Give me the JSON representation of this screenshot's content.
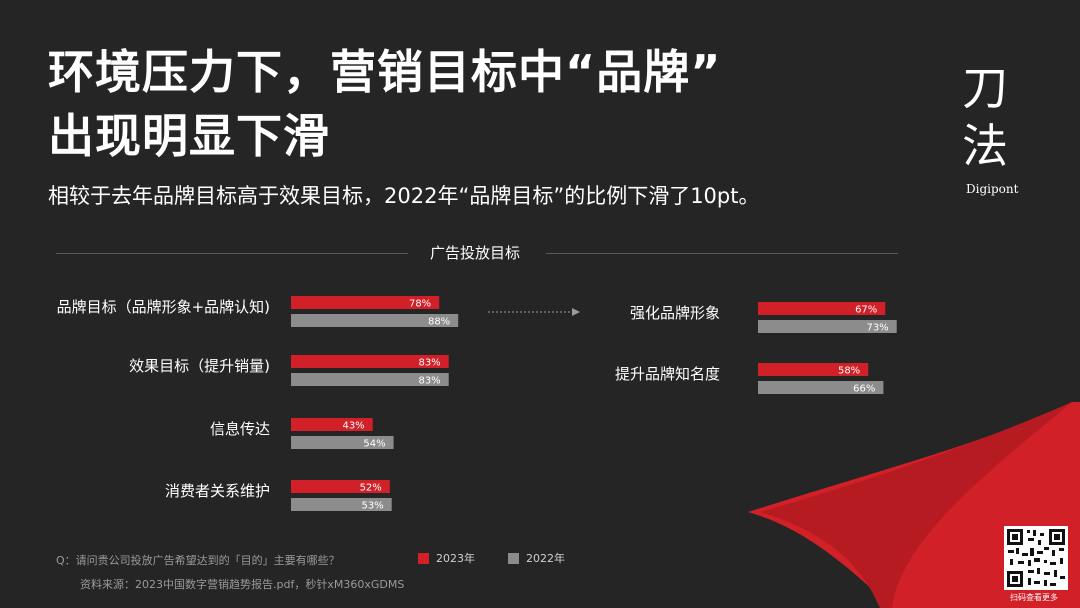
{
  "title": {
    "line1": "环境压力下，营销目标中“品牌”",
    "line2": "出现明显下滑"
  },
  "subtitle": "相较于去年品牌目标高于效果目标，2022年“品牌目标”的比例下滑了10pt。",
  "logo": {
    "line1": "刀",
    "line2": "法",
    "sub": "Digipont"
  },
  "section_title": "广告投放目标",
  "colors": {
    "series_2023": "#d12027",
    "series_2022": "#8c8c8c",
    "background": "#252526"
  },
  "chart_data": [
    {
      "type": "bar",
      "orientation": "horizontal",
      "categories": [
        "品牌目标（品牌形象+品牌认知)",
        "效果目标（提升销量)",
        "信息传达",
        "消费者关系维护"
      ],
      "series": [
        {
          "name": "2023年",
          "values": [
            78,
            83,
            43,
            52
          ],
          "labels": [
            "78%",
            "83%",
            "43%",
            "52%"
          ]
        },
        {
          "name": "2022年",
          "values": [
            88,
            83,
            54,
            53
          ],
          "labels": [
            "88%",
            "83%",
            "54%",
            "53%"
          ]
        }
      ]
    },
    {
      "type": "bar",
      "orientation": "horizontal",
      "categories": [
        "强化品牌形象",
        "提升品牌知名度"
      ],
      "series": [
        {
          "name": "2023年",
          "values": [
            67,
            58
          ],
          "labels": [
            "67%",
            "58%"
          ]
        },
        {
          "name": "2022年",
          "values": [
            73,
            66
          ],
          "labels": [
            "73%",
            "66%"
          ]
        }
      ]
    }
  ],
  "legend": [
    {
      "label": "2023年"
    },
    {
      "label": "2022年"
    }
  ],
  "footnote": {
    "question": "Q：请问贵公司投放广告希望达到的「目的」主要有哪些？",
    "source": "资料来源：2023中国数字营销趋势报告.pdf，秒针xM360xGDMS"
  },
  "qr_caption": "扫码查看更多"
}
